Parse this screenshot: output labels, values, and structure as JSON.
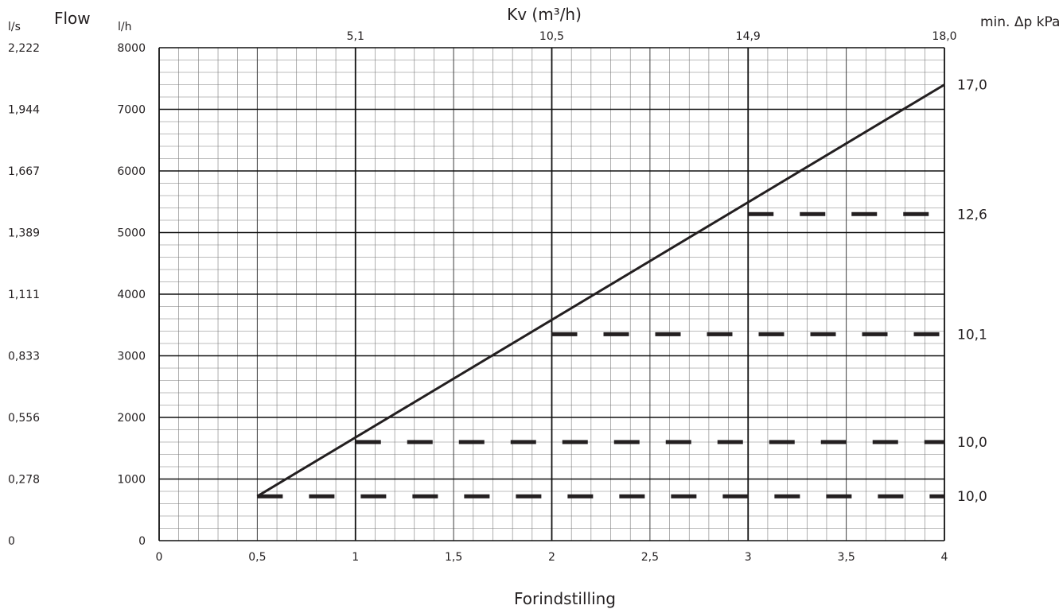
{
  "chart_data": {
    "type": "line",
    "xlabel": "Forindstilling",
    "x_ticks": [
      "0",
      "0,5",
      "1",
      "1,5",
      "2",
      "2,5",
      "3",
      "3,5",
      "4"
    ],
    "xlim": [
      0,
      4
    ],
    "ylim": [
      0,
      8000
    ],
    "y_left_header": "Flow",
    "y_lh_unit": "l/h",
    "y_ls_unit": "l/s",
    "y_lh_ticks": [
      "0",
      "1000",
      "2000",
      "3000",
      "4000",
      "5000",
      "6000",
      "7000",
      "8000"
    ],
    "y_ls_ticks": [
      "0",
      "0,278",
      "0,556",
      "0,833",
      "1,111",
      "1,389",
      "1,667",
      "1,944",
      "2,222"
    ],
    "top_axis_title": "Kv (m³/h)",
    "top_ticks": [
      {
        "x": 1,
        "label": "5,1"
      },
      {
        "x": 2,
        "label": "10,5"
      },
      {
        "x": 3,
        "label": "14,9"
      },
      {
        "x": 4,
        "label": "18,0"
      }
    ],
    "right_header": "min. Δp kPa",
    "line": {
      "x": [
        0.5,
        4
      ],
      "y": [
        720,
        7400
      ]
    },
    "dashed_lines": [
      {
        "x_start": 0.5,
        "x_end": 4,
        "y": 720,
        "label": "10,0"
      },
      {
        "x_start": 1,
        "x_end": 4,
        "y": 1600,
        "label": "10,0"
      },
      {
        "x_start": 2,
        "x_end": 4,
        "y": 3350,
        "label": "10,1"
      },
      {
        "x_start": 3,
        "x_end": 4,
        "y": 5300,
        "label": "12,6"
      }
    ],
    "end_label": {
      "y": 7400,
      "label": "17,0"
    },
    "grid": true
  }
}
